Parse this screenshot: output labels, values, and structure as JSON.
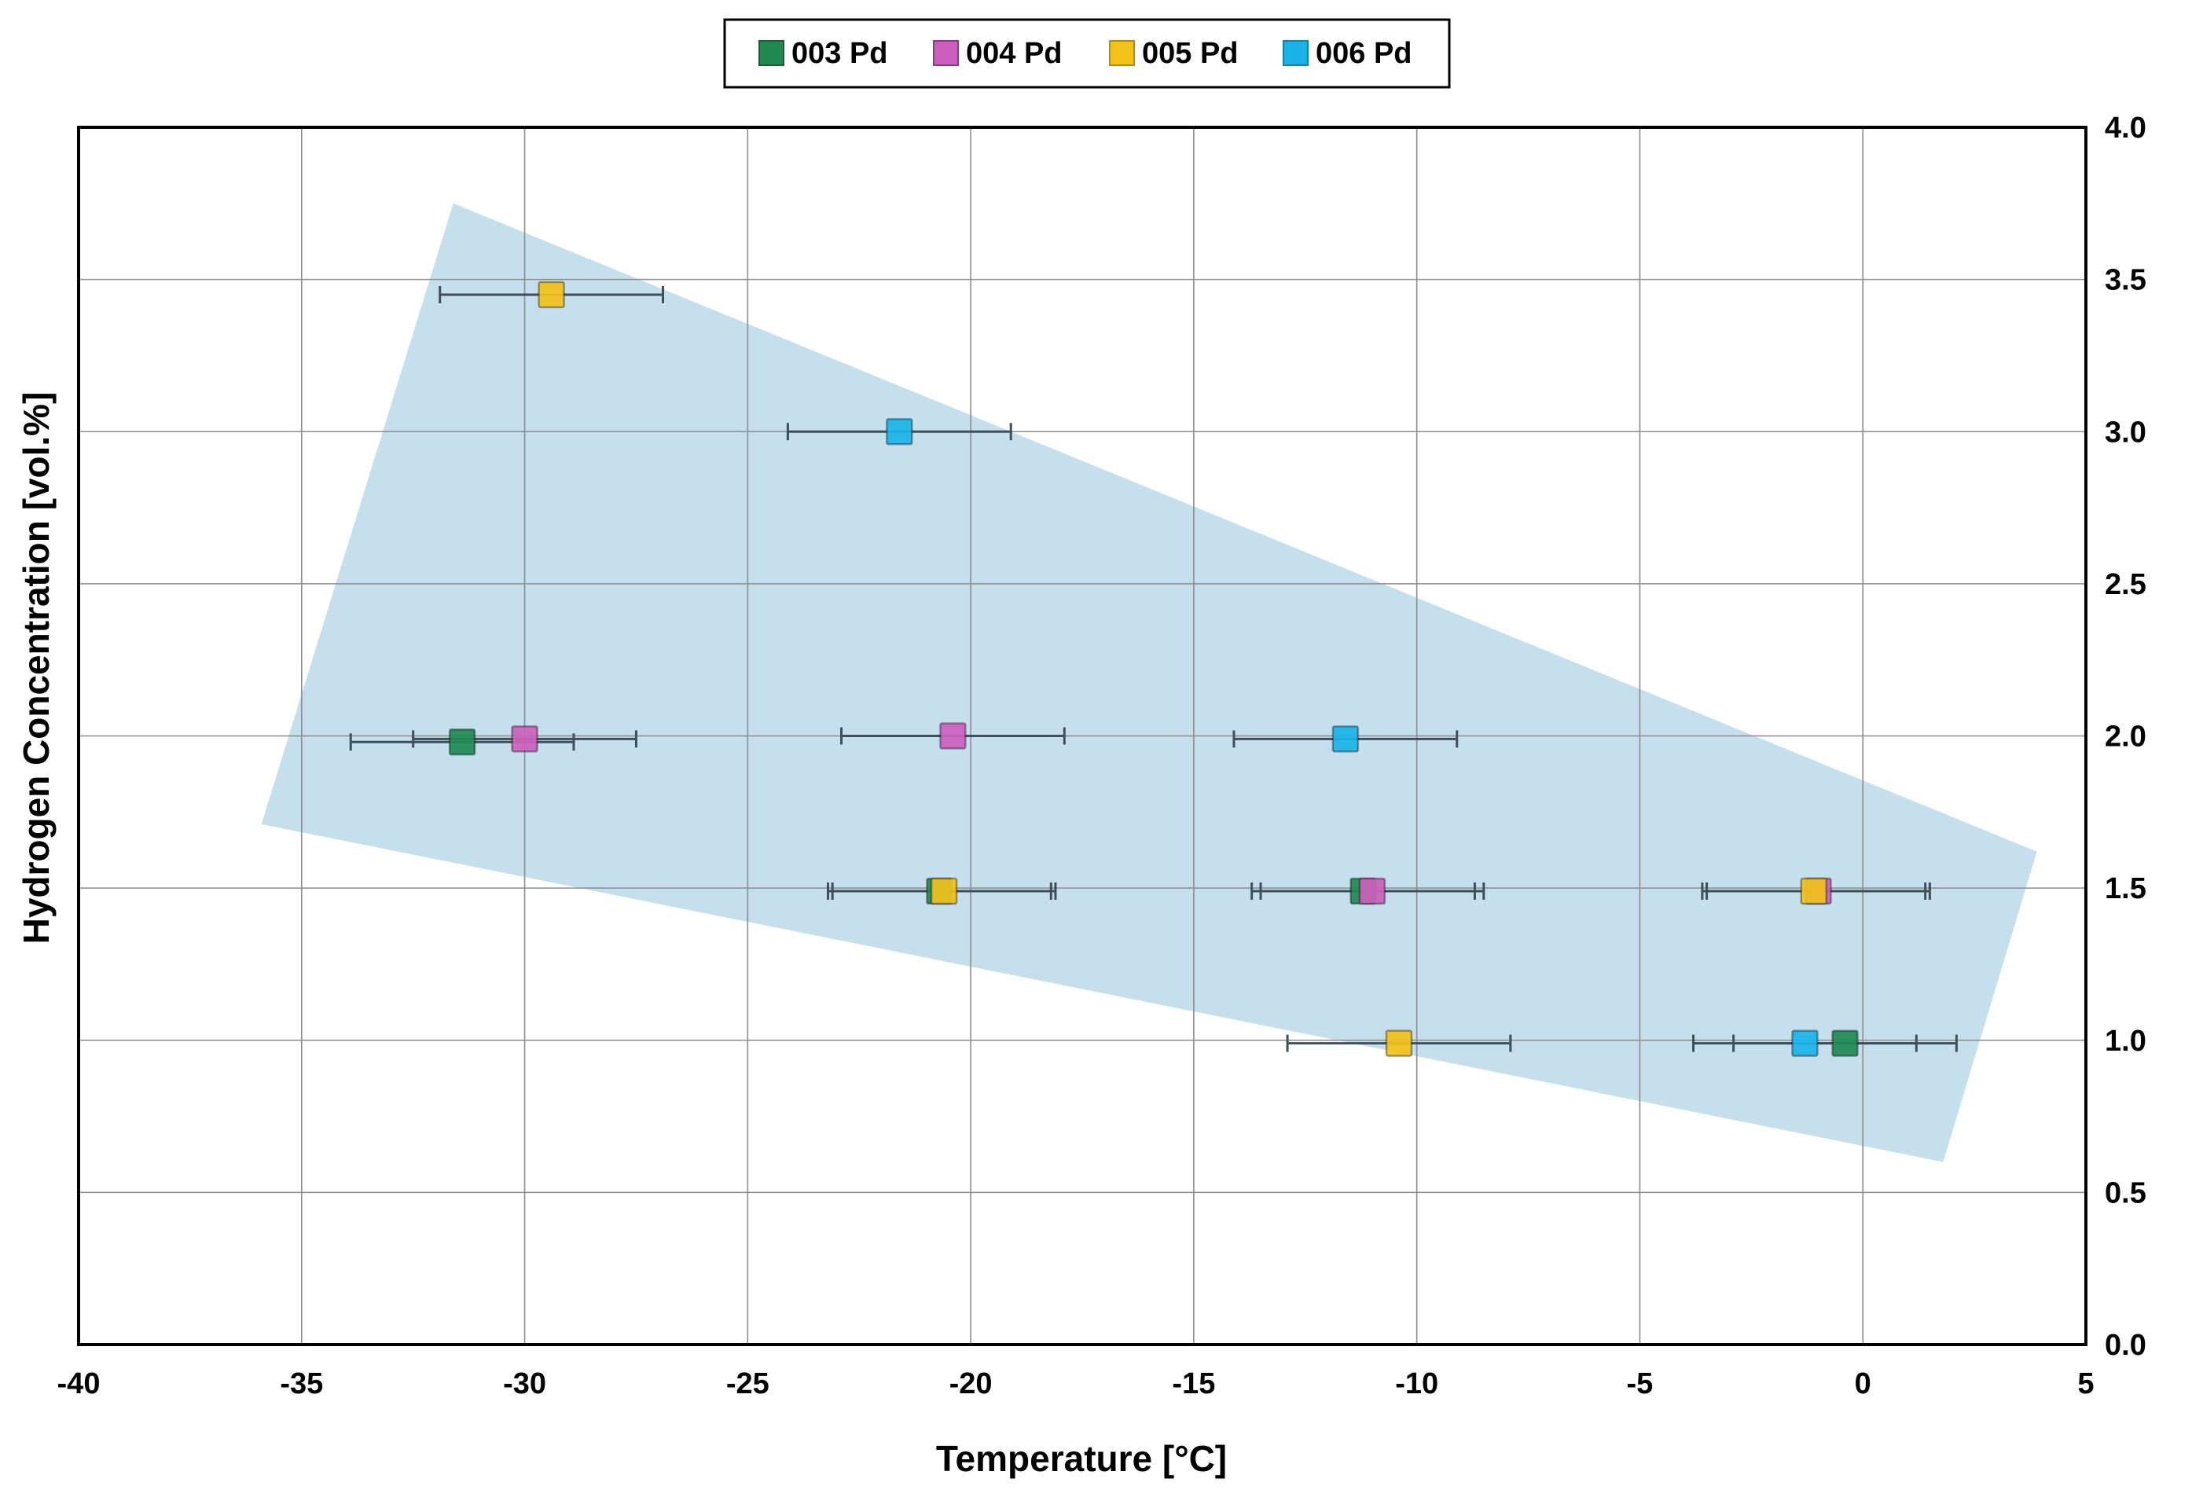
{
  "chart_data": {
    "type": "scatter",
    "title": "",
    "xlabel": "Temperature [°C]",
    "ylabel": "Hydrogen Concentration [vol.%]",
    "xlim": [
      -40,
      5
    ],
    "ylim": [
      0,
      4
    ],
    "x_ticks": [
      -40,
      -35,
      -30,
      -25,
      -20,
      -15,
      -10,
      -5,
      0,
      5
    ],
    "y_ticks": [
      0.0,
      0.5,
      1.0,
      1.5,
      2.0,
      2.5,
      3.0,
      3.5,
      4.0
    ],
    "x_tick_labels": [
      "-40",
      "-35",
      "-30",
      "-25",
      "-20",
      "-15",
      "-10",
      "-5",
      "0",
      "5"
    ],
    "y_tick_labels": [
      "0.0",
      "0.5",
      "1.0",
      "1.5",
      "2.0",
      "2.5",
      "3.0",
      "3.5",
      "4.0"
    ],
    "y_axis_position": "right",
    "grid": true,
    "legend_position": "top-center",
    "region": {
      "color": "#c5dfec",
      "vertices": [
        [
          -31.6,
          3.75
        ],
        [
          3.9,
          1.62
        ],
        [
          1.8,
          0.6
        ],
        [
          -35.9,
          1.71
        ]
      ]
    },
    "series": [
      {
        "name": "003 Pd",
        "color": "#1e8a52",
        "points": [
          {
            "x": -31.4,
            "y": 1.98,
            "xerr": 2.5
          },
          {
            "x": -20.7,
            "y": 1.49,
            "xerr": 2.5
          },
          {
            "x": -11.2,
            "y": 1.49,
            "xerr": 2.5
          },
          {
            "x": -0.4,
            "y": 0.99,
            "xerr": 2.5
          }
        ]
      },
      {
        "name": "004 Pd",
        "color": "#cc5fbd",
        "points": [
          {
            "x": -30.0,
            "y": 1.99,
            "xerr": 2.5
          },
          {
            "x": -20.4,
            "y": 2.0,
            "xerr": 2.5
          },
          {
            "x": -11.0,
            "y": 1.49,
            "xerr": 2.5
          },
          {
            "x": -1.0,
            "y": 1.49,
            "xerr": 2.5
          }
        ]
      },
      {
        "name": "005 Pd",
        "color": "#f2c11a",
        "points": [
          {
            "x": -29.4,
            "y": 3.45,
            "xerr": 2.5
          },
          {
            "x": -20.6,
            "y": 1.49,
            "xerr": 2.5
          },
          {
            "x": -1.1,
            "y": 1.49,
            "xerr": 2.5
          },
          {
            "x": -10.4,
            "y": 0.99,
            "xerr": 2.5
          }
        ]
      },
      {
        "name": "006 Pd",
        "color": "#1ab3e8",
        "points": [
          {
            "x": -21.6,
            "y": 3.0,
            "xerr": 2.5
          },
          {
            "x": -11.6,
            "y": 1.99,
            "xerr": 2.5
          },
          {
            "x": -1.3,
            "y": 0.99,
            "xerr": 2.5
          }
        ]
      }
    ]
  }
}
